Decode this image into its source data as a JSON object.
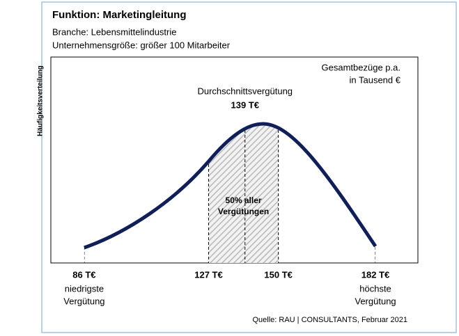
{
  "chart_data": {
    "type": "distribution",
    "title": "Funktion: Marketingleitung",
    "subtitle": [
      "Branche: Lebensmittelindustrie",
      "Unternehmensgröße: größer 100 Mitarbeiter"
    ],
    "y_label": "Häufigkeitsverteilung",
    "unit_note": [
      "Gesamtbezüge p.a.",
      "in Tausend €"
    ],
    "average_title": "Durchschnittsvergütung",
    "average": 139,
    "average_label": "139 T€",
    "x": [
      86,
      127,
      150,
      182
    ],
    "value_labels": [
      "86 T€",
      "127 T€",
      "150 T€",
      "182 T€"
    ],
    "min_caption": [
      "niedrigste",
      "Vergütung"
    ],
    "max_caption": [
      "höchste",
      "Vergütung"
    ],
    "band_label": [
      "50% aller",
      "Vergütungen"
    ],
    "xlim": [
      75,
      196
    ],
    "color": "#0f1f5c",
    "source": "Quelle: RAU | CONSULTANTS, Februar 2021"
  }
}
